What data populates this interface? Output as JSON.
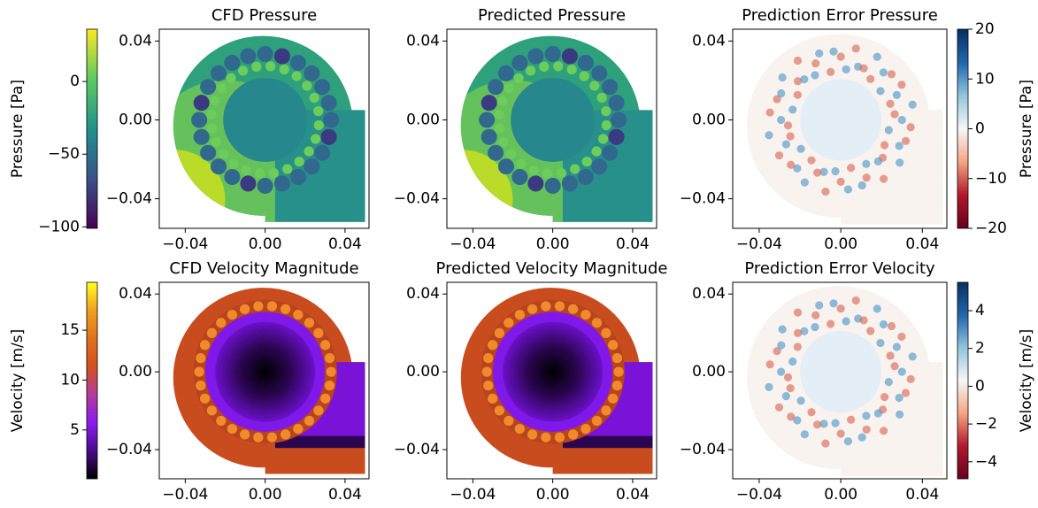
{
  "chart_data": [
    {
      "type": "heatmap",
      "title": "CFD Pressure",
      "colormap": "viridis",
      "xlim": [
        -0.053,
        0.052
      ],
      "ylim": [
        -0.055,
        0.046
      ],
      "xticks": [
        {
          "value": -0.04,
          "label": "−0.04"
        },
        {
          "value": 0,
          "label": "0.00"
        },
        0.04
      ],
      "yticks": [
        {
          "value": -0.04,
          "label": "−0.04"
        },
        {
          "value": 0,
          "label": "0.00"
        },
        0.04
      ],
      "colorbar": {
        "label": "Pressure [Pa]",
        "colormap": "viridis",
        "side": "left",
        "clim": [
          -101,
          36
        ],
        "ticks": [
          0,
          {
            "value": -50,
            "label": "−50"
          },
          {
            "value": -100,
            "label": "−100"
          }
        ]
      }
    },
    {
      "type": "heatmap",
      "title": "Predicted Pressure",
      "colormap": "viridis",
      "xlim": [
        -0.053,
        0.052
      ],
      "ylim": [
        -0.055,
        0.046
      ],
      "xticks": [
        {
          "value": -0.04,
          "label": "−0.04"
        },
        {
          "value": 0,
          "label": "0.00"
        },
        0.04
      ],
      "yticks": [
        {
          "value": -0.04,
          "label": "−0.04"
        },
        {
          "value": 0,
          "label": "0.00"
        },
        0.04
      ]
    },
    {
      "type": "heatmap",
      "title": "Prediction Error Pressure",
      "colormap": "RdBu",
      "xlim": [
        -0.053,
        0.052
      ],
      "ylim": [
        -0.055,
        0.046
      ],
      "xticks": [
        {
          "value": -0.04,
          "label": "−0.04"
        },
        {
          "value": 0,
          "label": "0.00"
        },
        0.04
      ],
      "yticks": [
        {
          "value": -0.04,
          "label": "−0.04"
        },
        {
          "value": 0,
          "label": "0.00"
        },
        0.04
      ],
      "colorbar": {
        "label": "Pressure [Pa]",
        "colormap": "RdBu",
        "side": "right",
        "clim": [
          -20,
          20
        ],
        "ticks": [
          20,
          10,
          0,
          {
            "value": -10,
            "label": "−10"
          },
          {
            "value": -20,
            "label": "−20"
          }
        ]
      }
    },
    {
      "type": "heatmap",
      "title": "CFD Velocity Magnitude",
      "colormap": "gnuplot",
      "xlim": [
        -0.053,
        0.052
      ],
      "ylim": [
        -0.055,
        0.046
      ],
      "xticks": [
        {
          "value": -0.04,
          "label": "−0.04"
        },
        {
          "value": 0,
          "label": "0.00"
        },
        0.04
      ],
      "yticks": [
        {
          "value": -0.04,
          "label": "−0.04"
        },
        {
          "value": 0,
          "label": "0.00"
        },
        0.04
      ],
      "colorbar": {
        "label": "Velocity [m/s]",
        "colormap": "gnuplot",
        "side": "left",
        "clim": [
          0.1,
          19.8
        ],
        "ticks": [
          15,
          10,
          5
        ]
      }
    },
    {
      "type": "heatmap",
      "title": "Predicted Velocity Magnitude",
      "colormap": "gnuplot",
      "xlim": [
        -0.053,
        0.052
      ],
      "ylim": [
        -0.055,
        0.046
      ],
      "xticks": [
        {
          "value": -0.04,
          "label": "−0.04"
        },
        {
          "value": 0,
          "label": "0.00"
        },
        0.04
      ],
      "yticks": [
        {
          "value": -0.04,
          "label": "−0.04"
        },
        {
          "value": 0,
          "label": "0.00"
        },
        0.04
      ]
    },
    {
      "type": "heatmap",
      "title": "Prediction Error Velocity",
      "colormap": "RdBu",
      "xlim": [
        -0.053,
        0.052
      ],
      "ylim": [
        -0.055,
        0.046
      ],
      "xticks": [
        {
          "value": -0.04,
          "label": "−0.04"
        },
        {
          "value": 0,
          "label": "0.00"
        },
        0.04
      ],
      "yticks": [
        {
          "value": -0.04,
          "label": "−0.04"
        },
        {
          "value": 0,
          "label": "0.00"
        },
        0.04
      ],
      "colorbar": {
        "label": "Velocity [m/s]",
        "colormap": "RdBu",
        "side": "right",
        "clim": [
          -4.9,
          5.5
        ],
        "ticks": [
          4,
          2,
          0,
          {
            "value": -2,
            "label": "−2"
          },
          {
            "value": -4,
            "label": "−4"
          }
        ]
      }
    }
  ]
}
